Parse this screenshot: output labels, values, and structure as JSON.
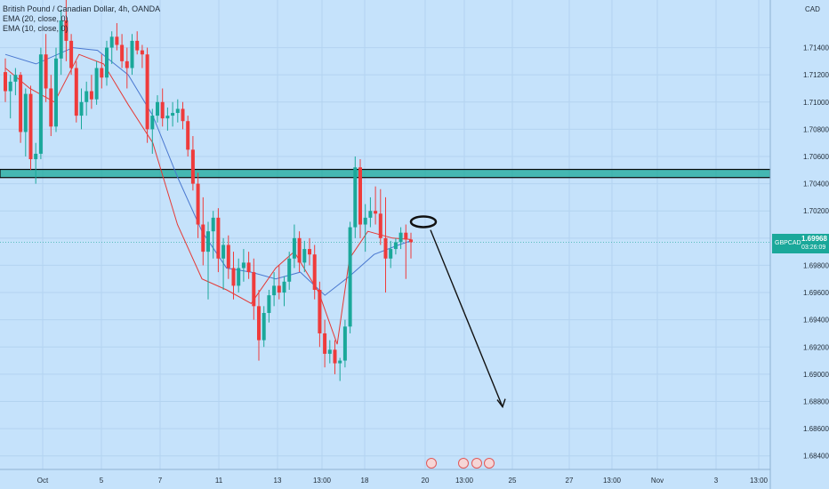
{
  "legend": {
    "title": "British Pound / Canadian Dollar, 4h, OANDA",
    "ema1": "EMA (20, close, 0)",
    "ema2": "EMA (10, close, 0)"
  },
  "currency": "CAD",
  "price_label": {
    "symbol": "GBPCAD",
    "price": "1.69968",
    "countdown": "03:26:09"
  },
  "colors": {
    "background": "#c5e2fb",
    "up": "#1aa89a",
    "down": "#ef3b3b",
    "ema_red": "#e53935",
    "ema_blue": "#4a78d0",
    "zone": "#1aa89a"
  },
  "chart_data": {
    "type": "candlestick",
    "symbol": "GBPCAD",
    "interval": "4h",
    "source": "OANDA",
    "ylim": [
      1.683,
      1.7175
    ],
    "y_ticks": [
      "1.71400",
      "1.71200",
      "1.71000",
      "1.70800",
      "1.70600",
      "1.70400",
      "1.70200",
      "1.70000",
      "1.69800",
      "1.69600",
      "1.69400",
      "1.69200",
      "1.69000",
      "1.68800",
      "1.68600",
      "1.68400"
    ],
    "x_ticks": [
      "Oct",
      "5",
      "7",
      "11",
      "13",
      "13:00",
      "18",
      "20",
      "13:00",
      "25",
      "27",
      "13:00",
      "Nov",
      "3",
      "13:00"
    ],
    "candles": [
      [
        1.7122,
        1.7132,
        1.71,
        1.7108
      ],
      [
        1.7108,
        1.712,
        1.7088,
        1.7115
      ],
      [
        1.7115,
        1.7125,
        1.7105,
        1.712
      ],
      [
        1.712,
        1.7122,
        1.707,
        1.7078
      ],
      [
        1.7078,
        1.711,
        1.706,
        1.7106
      ],
      [
        1.7106,
        1.7112,
        1.705,
        1.7058
      ],
      [
        1.7058,
        1.707,
        1.704,
        1.7062
      ],
      [
        1.7062,
        1.714,
        1.7058,
        1.7135
      ],
      [
        1.7135,
        1.715,
        1.71,
        1.711
      ],
      [
        1.711,
        1.712,
        1.7075,
        1.7082
      ],
      [
        1.7082,
        1.714,
        1.7078,
        1.7132
      ],
      [
        1.7132,
        1.7168,
        1.712,
        1.716
      ],
      [
        1.716,
        1.7175,
        1.713,
        1.7145
      ],
      [
        1.7145,
        1.715,
        1.712,
        1.7125
      ],
      [
        1.7125,
        1.713,
        1.7085,
        1.709
      ],
      [
        1.709,
        1.711,
        1.708,
        1.71
      ],
      [
        1.71,
        1.7115,
        1.709,
        1.7108
      ],
      [
        1.7108,
        1.712,
        1.7095,
        1.7102
      ],
      [
        1.7102,
        1.713,
        1.7098,
        1.7125
      ],
      [
        1.7125,
        1.7135,
        1.711,
        1.7118
      ],
      [
        1.7118,
        1.7145,
        1.7112,
        1.714
      ],
      [
        1.714,
        1.7152,
        1.7128,
        1.7148
      ],
      [
        1.7148,
        1.7158,
        1.7138,
        1.7142
      ],
      [
        1.7142,
        1.715,
        1.7125,
        1.713
      ],
      [
        1.713,
        1.714,
        1.711,
        1.7125
      ],
      [
        1.7125,
        1.715,
        1.712,
        1.7145
      ],
      [
        1.7145,
        1.7152,
        1.7135,
        1.7138
      ],
      [
        1.7138,
        1.7142,
        1.7125,
        1.7135
      ],
      [
        1.7135,
        1.714,
        1.707,
        1.708
      ],
      [
        1.708,
        1.7095,
        1.7062,
        1.709
      ],
      [
        1.709,
        1.7105,
        1.7085,
        1.71
      ],
      [
        1.71,
        1.711,
        1.7082,
        1.7088
      ],
      [
        1.7088,
        1.7096,
        1.7079,
        1.709
      ],
      [
        1.709,
        1.71,
        1.7082,
        1.7092
      ],
      [
        1.7092,
        1.7102,
        1.7085,
        1.7095
      ],
      [
        1.7095,
        1.71,
        1.708,
        1.7086
      ],
      [
        1.7086,
        1.709,
        1.706,
        1.7065
      ],
      [
        1.7065,
        1.7075,
        1.7035,
        1.704
      ],
      [
        1.704,
        1.7048,
        1.7,
        1.701
      ],
      [
        1.701,
        1.703,
        1.698,
        1.699
      ],
      [
        1.699,
        1.7012,
        1.6955,
        1.7005
      ],
      [
        1.7005,
        1.702,
        1.6985,
        1.7015
      ],
      [
        1.7015,
        1.7022,
        1.6975,
        1.6985
      ],
      [
        1.6985,
        1.7,
        1.6962,
        1.6995
      ],
      [
        1.6995,
        1.7002,
        1.697,
        1.6978
      ],
      [
        1.6978,
        1.699,
        1.6955,
        1.6965
      ],
      [
        1.6965,
        1.6985,
        1.696,
        1.6978
      ],
      [
        1.6978,
        1.6992,
        1.6968,
        1.6982
      ],
      [
        1.6982,
        1.699,
        1.697,
        1.6975
      ],
      [
        1.6975,
        1.6985,
        1.694,
        1.695
      ],
      [
        1.695,
        1.6962,
        1.691,
        1.6925
      ],
      [
        1.6925,
        1.695,
        1.692,
        1.6945
      ],
      [
        1.6945,
        1.6962,
        1.6938,
        1.6958
      ],
      [
        1.6958,
        1.6975,
        1.695,
        1.6965
      ],
      [
        1.6965,
        1.698,
        1.6955,
        1.696
      ],
      [
        1.696,
        1.6972,
        1.695,
        1.6968
      ],
      [
        1.6968,
        1.699,
        1.6962,
        1.6985
      ],
      [
        1.6985,
        1.701,
        1.6978,
        1.7
      ],
      [
        1.7,
        1.7005,
        1.6975,
        1.6982
      ],
      [
        1.6982,
        1.6998,
        1.6975,
        1.6992
      ],
      [
        1.6992,
        1.7,
        1.698,
        1.6988
      ],
      [
        1.6988,
        1.6995,
        1.6955,
        1.6962
      ],
      [
        1.6962,
        1.6968,
        1.692,
        1.693
      ],
      [
        1.693,
        1.694,
        1.6905,
        1.6915
      ],
      [
        1.6915,
        1.6925,
        1.6908,
        1.6918
      ],
      [
        1.6918,
        1.6925,
        1.69,
        1.6908
      ],
      [
        1.6908,
        1.6912,
        1.6895,
        1.691
      ],
      [
        1.691,
        1.694,
        1.6905,
        1.6935
      ],
      [
        1.6935,
        1.7012,
        1.693,
        1.7008
      ],
      [
        1.7008,
        1.706,
        1.7,
        1.7052
      ],
      [
        1.7052,
        1.7058,
        1.7,
        1.701
      ],
      [
        1.701,
        1.7025,
        1.699,
        1.7015
      ],
      [
        1.7015,
        1.703,
        1.7008,
        1.702
      ],
      [
        1.702,
        1.7038,
        1.701,
        1.7018
      ],
      [
        1.7018,
        1.7036,
        1.6995,
        1.7
      ],
      [
        1.7,
        1.703,
        1.696,
        1.6985
      ],
      [
        1.6985,
        1.6998,
        1.6978,
        1.6992
      ],
      [
        1.6992,
        1.7,
        1.6988,
        1.6997
      ],
      [
        1.6997,
        1.7008,
        1.6992,
        1.7004
      ],
      [
        1.7004,
        1.701,
        1.697,
        1.6999
      ],
      [
        1.6999,
        1.7004,
        1.6985,
        1.6997
      ]
    ],
    "ema_red_points": [
      [
        1.7125,
        0
      ],
      [
        1.711,
        8
      ],
      [
        1.71,
        16
      ],
      [
        1.7135,
        24
      ],
      [
        1.7128,
        32
      ],
      [
        1.7098,
        40
      ],
      [
        1.707,
        48
      ],
      [
        1.701,
        56
      ],
      [
        1.697,
        64
      ],
      [
        1.6962,
        72
      ],
      [
        1.6952,
        80
      ],
      [
        1.6978,
        88
      ],
      [
        1.699,
        94
      ],
      [
        1.696,
        102
      ],
      [
        1.6922,
        108
      ],
      [
        1.6985,
        112
      ],
      [
        1.7005,
        118
      ],
      [
        1.7,
        126
      ],
      [
        1.6999,
        132
      ]
    ],
    "ema_blue_points": [
      [
        1.7135,
        0
      ],
      [
        1.7128,
        10
      ],
      [
        1.714,
        22
      ],
      [
        1.7138,
        30
      ],
      [
        1.712,
        40
      ],
      [
        1.709,
        48
      ],
      [
        1.7045,
        56
      ],
      [
        1.7005,
        64
      ],
      [
        1.6978,
        72
      ],
      [
        1.6975,
        80
      ],
      [
        1.697,
        88
      ],
      [
        1.6975,
        96
      ],
      [
        1.6958,
        104
      ],
      [
        1.6972,
        112
      ],
      [
        1.6988,
        120
      ],
      [
        1.6995,
        128
      ],
      [
        1.6998,
        132
      ]
    ],
    "resistance_zone": [
      1.70445,
      1.70505
    ],
    "current_price": 1.69968,
    "annotations": {
      "ellipse_price": 1.7012,
      "arrow": {
        "start_price": 1.7006,
        "end_price": 1.6876
      }
    }
  }
}
